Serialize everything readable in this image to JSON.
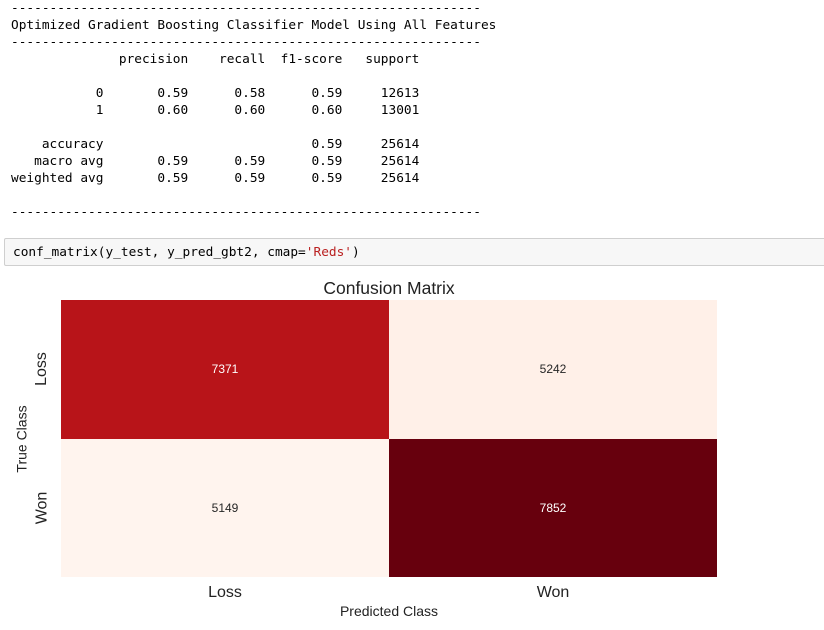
{
  "report": {
    "text": "-------------------------------------------------------------\nOptimized Gradient Boosting Classifier Model Using All Features\n-------------------------------------------------------------\n              precision    recall  f1-score   support\n\n           0       0.59      0.58      0.59     12613\n           1       0.60      0.60      0.60     13001\n\n    accuracy                           0.59     25614\n   macro avg       0.59      0.59      0.59     25614\nweighted avg       0.59      0.59      0.59     25614\n\n-------------------------------------------------------------"
  },
  "code_cell": {
    "prefix": "conf_matrix(y_test, y_pred_gbt2, cmap=",
    "string_literal": "'Reds'",
    "suffix": ")"
  },
  "chart_data": {
    "type": "heatmap",
    "title": "Confusion Matrix",
    "xlabel": "Predicted Class",
    "ylabel": "True Class",
    "x_categories": [
      "Loss",
      "Won"
    ],
    "y_categories": [
      "Loss",
      "Won"
    ],
    "values": [
      [
        7371,
        5242
      ],
      [
        5149,
        7852
      ]
    ],
    "colormap": "Reds",
    "colors": {
      "cell_0_0": "#b81419",
      "cell_0_1": "#fff0e8",
      "cell_1_0": "#fff4ee",
      "cell_1_1": "#67000d"
    }
  }
}
